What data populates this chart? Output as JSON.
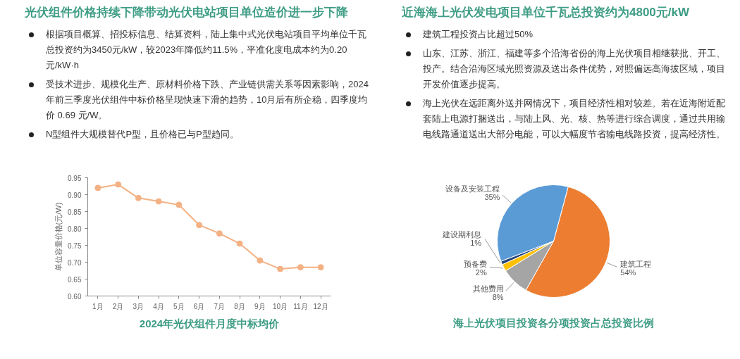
{
  "chart_data": [
    {
      "type": "line",
      "title": "光伏组件价格持续下降带动光伏电站项目单位造价进一步下降",
      "subtitle": "2024年光伏组件月度中标均价",
      "annotations": [
        "根据项目概算、招投标信息、结算资料，陆上集中式光伏电站项目平均单位千瓦总投资约为3450元/kW，较2023年降低约11.5%，平准化度电成本约为0.20元/kW·h",
        "受技术进步、规模化生产、原材料价格下跌、产业链供需关系等因素影响，2024年前三季度光伏组件中标价格呈现快速下滑的趋势，10月后有所企稳，四季度均价 0.69 元/W。",
        "N型组件大规模替代P型，且价格已与P型趋同。"
      ],
      "ylabel": "单位容量价格(元/W)",
      "categories": [
        "1月",
        "2月",
        "3月",
        "4月",
        "5月",
        "6月",
        "7月",
        "8月",
        "9月",
        "10月",
        "11月",
        "12月"
      ],
      "series": [
        {
          "color": "#f4b183",
          "values": [
            0.92,
            0.93,
            0.89,
            0.88,
            0.87,
            0.81,
            0.785,
            0.755,
            0.705,
            0.68,
            0.685,
            0.685
          ]
        }
      ],
      "ylim": [
        0.6,
        0.95
      ],
      "yticks": [
        {
          "value": 0.6,
          "label": "0.60"
        },
        0.65,
        {
          "value": 0.7,
          "label": "0.70"
        },
        0.75,
        {
          "value": 0.8,
          "label": "0.80"
        },
        0.85,
        {
          "value": 0.9,
          "label": "0.90"
        },
        0.95
      ],
      "marker": "circle"
    },
    {
      "type": "pie",
      "title": "近海海上光伏发电项目单位千瓦总投资约为4800元/kW",
      "subtitle": "海上光伏项目投资各分项投资占总投资比例",
      "annotations": [
        "建筑工程投资占比超过50%",
        "山东、江苏、浙江、福建等多个沿海省份的海上光伏项目相继获批、开工、投产。结合沿海区域光照资源及送出条件优势，对照偏远高海拔区域，项目开发价值逐步提高。",
        "海上光伏在远距离外送并网情况下，项目经济性相对较差。若在近海附近配套陆上电源打捆送出，与陆上风、光、核、热等进行综合调度，通过共用输电线路通道送出大部分电能，可以大幅度节省输电线路投资，提高经济性。"
      ],
      "categories": [
        "建筑工程",
        "其他费用",
        "预备费",
        "建设期利息",
        "设备及安装工程"
      ],
      "values": [
        54,
        8,
        2,
        1,
        35
      ],
      "colors": [
        "#ed7d31",
        "#a5a5a5",
        "#ffc000",
        "#264478",
        "#5b9bd5"
      ],
      "value_labels": [
        "54%",
        "8%",
        "2%",
        "1%",
        "35%"
      ]
    }
  ]
}
